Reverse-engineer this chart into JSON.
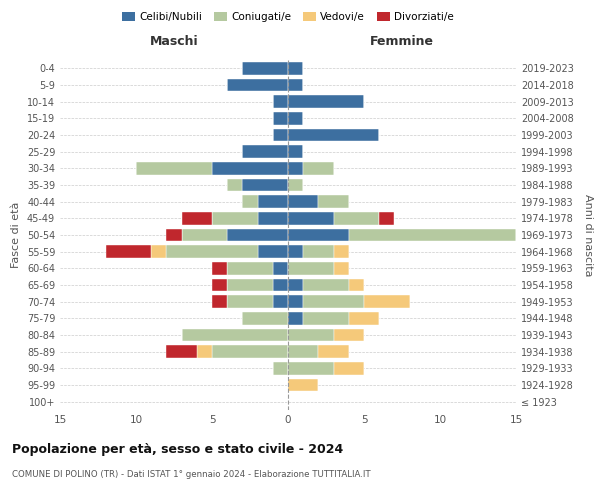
{
  "age_groups": [
    "100+",
    "95-99",
    "90-94",
    "85-89",
    "80-84",
    "75-79",
    "70-74",
    "65-69",
    "60-64",
    "55-59",
    "50-54",
    "45-49",
    "40-44",
    "35-39",
    "30-34",
    "25-29",
    "20-24",
    "15-19",
    "10-14",
    "5-9",
    "0-4"
  ],
  "birth_years": [
    "≤ 1923",
    "1924-1928",
    "1929-1933",
    "1934-1938",
    "1939-1943",
    "1944-1948",
    "1949-1953",
    "1954-1958",
    "1959-1963",
    "1964-1968",
    "1969-1973",
    "1974-1978",
    "1979-1983",
    "1984-1988",
    "1989-1993",
    "1994-1998",
    "1999-2003",
    "2004-2008",
    "2009-2013",
    "2014-2018",
    "2019-2023"
  ],
  "colors": {
    "celibi": "#3d6fa0",
    "coniugati": "#b5c9a0",
    "vedovi": "#f5c97a",
    "divorziati": "#c0272d"
  },
  "maschi": {
    "celibi": [
      0,
      0,
      0,
      0,
      0,
      0,
      1,
      1,
      1,
      2,
      4,
      2,
      2,
      3,
      5,
      3,
      1,
      1,
      1,
      4,
      3
    ],
    "coniugati": [
      0,
      0,
      1,
      5,
      7,
      3,
      3,
      3,
      3,
      6,
      3,
      3,
      1,
      1,
      5,
      0,
      0,
      0,
      0,
      0,
      0
    ],
    "vedovi": [
      0,
      0,
      0,
      1,
      0,
      0,
      0,
      0,
      0,
      1,
      0,
      0,
      0,
      0,
      0,
      0,
      0,
      0,
      0,
      0,
      0
    ],
    "divorziati": [
      0,
      0,
      0,
      2,
      0,
      0,
      1,
      1,
      1,
      3,
      1,
      2,
      0,
      0,
      0,
      0,
      0,
      0,
      0,
      0,
      0
    ]
  },
  "femmine": {
    "celibi": [
      0,
      0,
      0,
      0,
      0,
      1,
      1,
      1,
      0,
      1,
      4,
      3,
      2,
      0,
      1,
      1,
      6,
      1,
      5,
      1,
      1
    ],
    "coniugati": [
      0,
      0,
      3,
      2,
      3,
      3,
      4,
      3,
      3,
      2,
      11,
      3,
      2,
      1,
      2,
      0,
      0,
      0,
      0,
      0,
      0
    ],
    "vedovi": [
      0,
      2,
      2,
      2,
      2,
      2,
      3,
      1,
      1,
      1,
      0,
      0,
      0,
      0,
      0,
      0,
      0,
      0,
      0,
      0,
      0
    ],
    "divorziati": [
      0,
      0,
      0,
      0,
      0,
      0,
      0,
      0,
      0,
      0,
      0,
      1,
      0,
      0,
      0,
      0,
      0,
      0,
      0,
      0,
      0
    ]
  },
  "xlim": 15,
  "title": "Popolazione per età, sesso e stato civile - 2024",
  "subtitle": "COMUNE DI POLINO (TR) - Dati ISTAT 1° gennaio 2024 - Elaborazione TUTTITALIA.IT",
  "xlabel_left": "Maschi",
  "xlabel_right": "Femmine",
  "ylabel_left": "Fasce di età",
  "ylabel_right": "Anni di nascita",
  "legend_labels": [
    "Celibi/Nubili",
    "Coniugati/e",
    "Vedovi/e",
    "Divorziati/e"
  ],
  "background_color": "#ffffff",
  "grid_color": "#cccccc",
  "bar_height": 0.75
}
